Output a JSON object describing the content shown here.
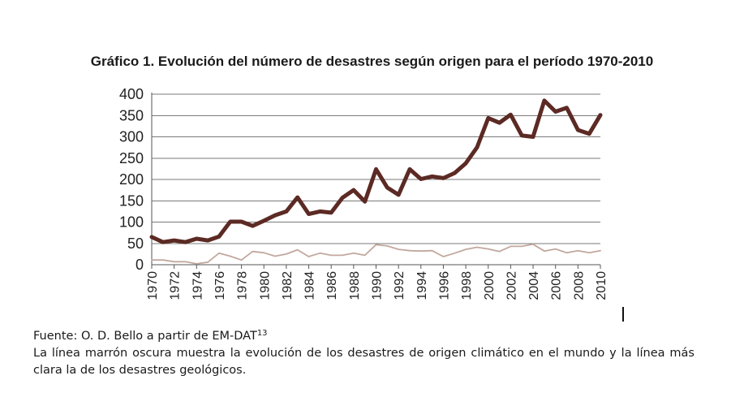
{
  "chart_data": {
    "type": "line",
    "title": "Gráfico 1. Evolución del número de desastres según origen para el período 1970-2010",
    "xlabel": "",
    "ylabel": "",
    "ylim": [
      0,
      400
    ],
    "xlim": [
      1970,
      2010
    ],
    "yticks": [
      0,
      50,
      100,
      150,
      200,
      250,
      300,
      350,
      400
    ],
    "xticks": [
      "1970",
      "1972",
      "1974",
      "1976",
      "1978",
      "1980",
      "1982",
      "1984",
      "1986",
      "1988",
      "1990",
      "1992",
      "1994",
      "1996",
      "1998",
      "2000",
      "2002",
      "2004",
      "2006",
      "2008",
      "2010"
    ],
    "grid": true,
    "x": [
      1970,
      1971,
      1972,
      1973,
      1974,
      1975,
      1976,
      1977,
      1978,
      1979,
      1980,
      1981,
      1982,
      1983,
      1984,
      1985,
      1986,
      1987,
      1988,
      1989,
      1990,
      1991,
      1992,
      1993,
      1994,
      1995,
      1996,
      1997,
      1998,
      1999,
      2000,
      2001,
      2002,
      2003,
      2004,
      2005,
      2006,
      2007,
      2008,
      2009,
      2010
    ],
    "series": [
      {
        "color": "#5c2a24",
        "values": [
          65,
          53,
          57,
          53,
          61,
          57,
          66,
          101,
          101,
          91,
          103,
          116,
          125,
          158,
          119,
          125,
          122,
          157,
          175,
          148,
          224,
          181,
          164,
          224,
          201,
          207,
          203,
          215,
          238,
          275,
          344,
          333,
          352,
          303,
          300,
          385,
          359,
          368,
          316,
          307,
          351
        ]
      },
      {
        "color": "#c2a89e",
        "values": [
          11,
          11,
          7,
          7,
          2,
          6,
          27,
          20,
          11,
          31,
          28,
          20,
          25,
          35,
          19,
          27,
          22,
          22,
          27,
          22,
          47,
          44,
          36,
          33,
          32,
          33,
          19,
          27,
          36,
          41,
          37,
          31,
          43,
          43,
          48,
          32,
          37,
          28,
          33,
          28,
          33
        ]
      }
    ]
  },
  "caption": {
    "source_prefix": "Fuente: O. D. Bello a partir de EM-DAT",
    "source_ref": "13",
    "description": "La línea marrón oscura muestra la evolución de los desastres de origen climático en el mundo y la línea más clara la de los desastres geológicos."
  }
}
